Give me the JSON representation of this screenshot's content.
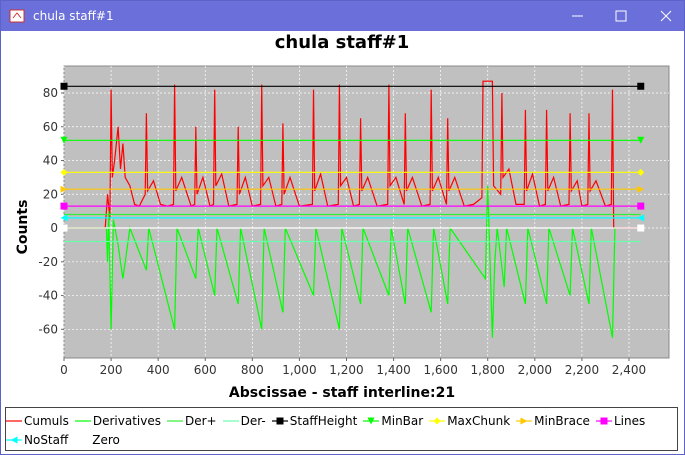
{
  "window_title": "chula staff#1",
  "chart_data": {
    "type": "line",
    "title": "chula staff#1",
    "xlabel": "Abscissae - staff interline:21",
    "ylabel": "Counts",
    "xlim": [
      0,
      2570
    ],
    "ylim": [
      -77,
      96
    ],
    "xticks": [
      0,
      200,
      400,
      600,
      800,
      {
        "value": 1000,
        "label": "1,000"
      },
      {
        "value": 1200,
        "label": "1,200"
      },
      {
        "value": 1400,
        "label": "1,400"
      },
      {
        "value": 1600,
        "label": "1,600"
      },
      {
        "value": 1800,
        "label": "1,800"
      },
      {
        "value": 2000,
        "label": "2,000"
      },
      {
        "value": 2200,
        "label": "2,200"
      },
      {
        "value": 2400,
        "label": "2,400"
      }
    ],
    "yticks": [
      -60,
      -40,
      -20,
      0,
      20,
      40,
      60,
      80
    ],
    "grid": true,
    "legend": "bottom",
    "series": [
      {
        "name": "Cumuls",
        "color": "#ff0000",
        "x": [
          0,
          175,
          185,
          195,
          200,
          205,
          215,
          230,
          240,
          250,
          260,
          280,
          300,
          320,
          345,
          350,
          355,
          380,
          410,
          440,
          465,
          470,
          475,
          500,
          540,
          555,
          560,
          565,
          590,
          620,
          635,
          640,
          645,
          670,
          700,
          735,
          740,
          745,
          770,
          800,
          835,
          840,
          845,
          870,
          900,
          925,
          930,
          935,
          960,
          1000,
          1055,
          1060,
          1065,
          1090,
          1120,
          1165,
          1170,
          1175,
          1200,
          1230,
          1255,
          1260,
          1265,
          1290,
          1330,
          1375,
          1380,
          1385,
          1410,
          1445,
          1450,
          1455,
          1480,
          1520,
          1555,
          1560,
          1565,
          1590,
          1625,
          1630,
          1635,
          1660,
          1700,
          1740,
          1775,
          1780,
          1800,
          1820,
          1825,
          1855,
          1860,
          1865,
          1890,
          1920,
          1955,
          1960,
          1965,
          1990,
          2020,
          2045,
          2050,
          2055,
          2080,
          2110,
          2145,
          2150,
          2155,
          2180,
          2200,
          2225,
          2230,
          2235,
          2260,
          2300,
          2325,
          2330,
          2335,
          2450
        ],
        "values": [
          0,
          0,
          20,
          5,
          82,
          30,
          40,
          60,
          35,
          50,
          30,
          25,
          14,
          13,
          20,
          68,
          22,
          28,
          14,
          13,
          14,
          85,
          22,
          30,
          13,
          14,
          60,
          20,
          30,
          13,
          14,
          82,
          25,
          32,
          13,
          14,
          60,
          20,
          30,
          13,
          14,
          85,
          25,
          30,
          13,
          14,
          62,
          20,
          30,
          13,
          14,
          82,
          22,
          32,
          13,
          14,
          85,
          25,
          30,
          13,
          14,
          65,
          22,
          30,
          13,
          14,
          85,
          25,
          30,
          14,
          68,
          22,
          30,
          13,
          14,
          82,
          22,
          30,
          14,
          65,
          22,
          30,
          13,
          14,
          18,
          87,
          87,
          87,
          25,
          20,
          80,
          30,
          35,
          14,
          14,
          70,
          22,
          32,
          13,
          14,
          70,
          22,
          30,
          13,
          14,
          68,
          22,
          28,
          13,
          14,
          68,
          22,
          28,
          13,
          14,
          82,
          0,
          0
        ]
      },
      {
        "name": "Derivatives",
        "color": "#00ff00",
        "x": [
          0,
          180,
          185,
          190,
          200,
          210,
          230,
          250,
          280,
          350,
          360,
          470,
          480,
          560,
          570,
          640,
          650,
          740,
          750,
          840,
          850,
          930,
          940,
          1060,
          1070,
          1170,
          1180,
          1260,
          1270,
          1380,
          1390,
          1450,
          1460,
          1560,
          1570,
          1630,
          1640,
          1790,
          1800,
          1820,
          1830,
          1840,
          1870,
          1880,
          1960,
          1970,
          2050,
          2060,
          2150,
          2160,
          2230,
          2240,
          2330,
          2340
        ],
        "values": [
          0,
          0,
          -20,
          10,
          -60,
          5,
          -10,
          -30,
          0,
          -25,
          0,
          -60,
          0,
          -30,
          0,
          -40,
          0,
          -45,
          0,
          -60,
          0,
          -50,
          0,
          -40,
          0,
          -60,
          0,
          -45,
          0,
          -40,
          0,
          -45,
          0,
          -50,
          0,
          -45,
          0,
          -30,
          25,
          -65,
          -20,
          0,
          -35,
          0,
          -45,
          0,
          -45,
          0,
          -40,
          0,
          -45,
          0,
          -65,
          0
        ]
      },
      {
        "name": "Der+",
        "color": "#33ee33",
        "x": [
          0,
          2450
        ],
        "values": [
          8,
          8
        ]
      },
      {
        "name": "Der-",
        "color": "#66ffaa",
        "x": [
          0,
          2450
        ],
        "values": [
          -8,
          -8
        ]
      },
      {
        "name": "StaffHeight",
        "color": "#000000",
        "marker": "square",
        "x": [
          0,
          2450
        ],
        "values": [
          84,
          84
        ]
      },
      {
        "name": "MinBar",
        "color": "#00ff00",
        "marker": "triangle-down",
        "x": [
          0,
          2450
        ],
        "values": [
          52,
          52
        ]
      },
      {
        "name": "MaxChunk",
        "color": "#ffff00",
        "marker": "diamond",
        "x": [
          0,
          2450
        ],
        "values": [
          33,
          33
        ]
      },
      {
        "name": "MinBrace",
        "color": "#ffc800",
        "marker": "triangle-right",
        "x": [
          0,
          2450
        ],
        "values": [
          23,
          23
        ]
      },
      {
        "name": "Lines",
        "color": "#ff00ff",
        "marker": "square",
        "x": [
          0,
          2450
        ],
        "values": [
          13,
          13
        ]
      },
      {
        "name": "NoStaff",
        "color": "#00ffff",
        "marker": "triangle-left",
        "x": [
          0,
          2450
        ],
        "values": [
          6,
          6
        ]
      },
      {
        "name": "Zero",
        "color": "#ffffff",
        "marker": "square",
        "x": [
          0,
          2450
        ],
        "values": [
          0,
          0
        ]
      }
    ]
  }
}
